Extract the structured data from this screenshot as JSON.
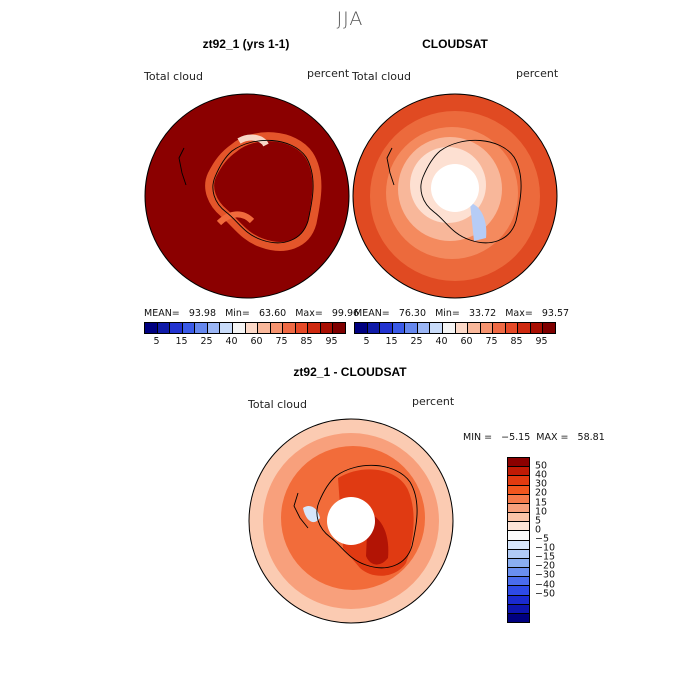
{
  "season": "JJA",
  "panels": [
    {
      "title": "zt92_1 (yrs 1-1)",
      "var_label": "Total cloud",
      "units": "percent",
      "stats": "MEAN=   93.98   Min=   63.60   Max=   99.96"
    },
    {
      "title": "CLOUDSAT",
      "var_label": "Total cloud",
      "units": "percent",
      "stats": "MEAN=   76.30   Min=   33.72   Max=   93.57"
    },
    {
      "title": "zt92_1 - CLOUDSAT",
      "var_label": "Total cloud",
      "units": "percent",
      "minmax": "MIN =   −5.15  MAX =   58.81"
    }
  ],
  "top_colorbar": {
    "colors": [
      "#000080",
      "#0f1aa8",
      "#2233d0",
      "#3b5be8",
      "#6688ee",
      "#9bb6f5",
      "#c9dcfa",
      "#f4f4f4",
      "#fcd9c8",
      "#f9b89b",
      "#f5936f",
      "#ef6a45",
      "#e64a28",
      "#cf2a10",
      "#a80f02",
      "#7f0000"
    ],
    "tick_labels": [
      "5",
      "15",
      "25",
      "40",
      "60",
      "75",
      "85",
      "95"
    ]
  },
  "diff_colorbar": {
    "colors": [
      "#8b0000",
      "#c01a05",
      "#e23a10",
      "#f2561e",
      "#f67a4a",
      "#f8a07c",
      "#fbc4a8",
      "#fde4d6",
      "#fbfbfb",
      "#d7e6fb",
      "#b1cbf6",
      "#8aaef1",
      "#6a8ff0",
      "#4a6cee",
      "#2e4ae6",
      "#1a2ad0",
      "#0e15b0",
      "#000080"
    ],
    "tick_labels": [
      "50",
      "40",
      "30",
      "20",
      "15",
      "10",
      "5",
      "0",
      "−5",
      "−10",
      "−15",
      "−20",
      "−30",
      "−40",
      "−50"
    ]
  },
  "map_palette": {
    "panel1_ocean": "#8b0000",
    "panel1_ring": "#d8451d",
    "panel2_outer": "#e04a22",
    "panel2_inner": "#f8b79a",
    "panel3_base": "#fbcbb2",
    "panel3_ring": "#ef5c2c",
    "pole_hole": "#ffffff"
  }
}
